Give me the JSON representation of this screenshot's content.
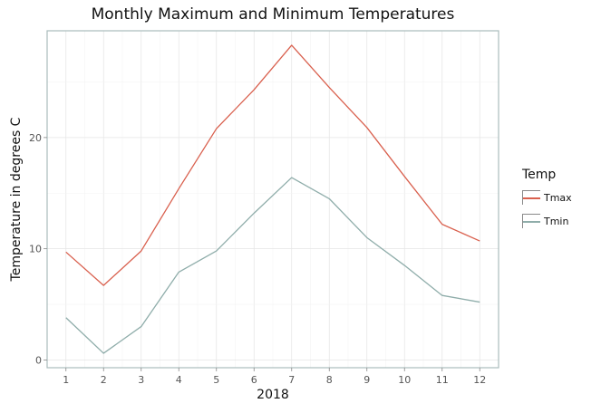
{
  "chart_data": {
    "type": "line",
    "title": "Monthly Maximum and Minimum Temperatures",
    "xlabel": "2018",
    "ylabel": "Temperature in degrees C",
    "x": [
      1,
      2,
      3,
      4,
      5,
      6,
      7,
      8,
      9,
      10,
      11,
      12
    ],
    "xlim": [
      0.5,
      12.5
    ],
    "ylim": [
      -0.7,
      29.6
    ],
    "yticks": [
      0,
      10,
      20
    ],
    "grid": true,
    "legend": {
      "title": "Temp",
      "placement": "right"
    },
    "series": [
      {
        "name": "Tmax",
        "color": "#d9604e",
        "values": [
          9.7,
          6.7,
          9.8,
          15.4,
          20.8,
          24.3,
          28.3,
          24.5,
          20.9,
          16.5,
          12.2,
          10.7
        ]
      },
      {
        "name": "Tmin",
        "color": "#8fadaa",
        "values": [
          3.8,
          0.6,
          3.0,
          7.9,
          9.8,
          13.2,
          16.4,
          14.5,
          11.0,
          8.5,
          5.8,
          5.2
        ]
      }
    ]
  }
}
